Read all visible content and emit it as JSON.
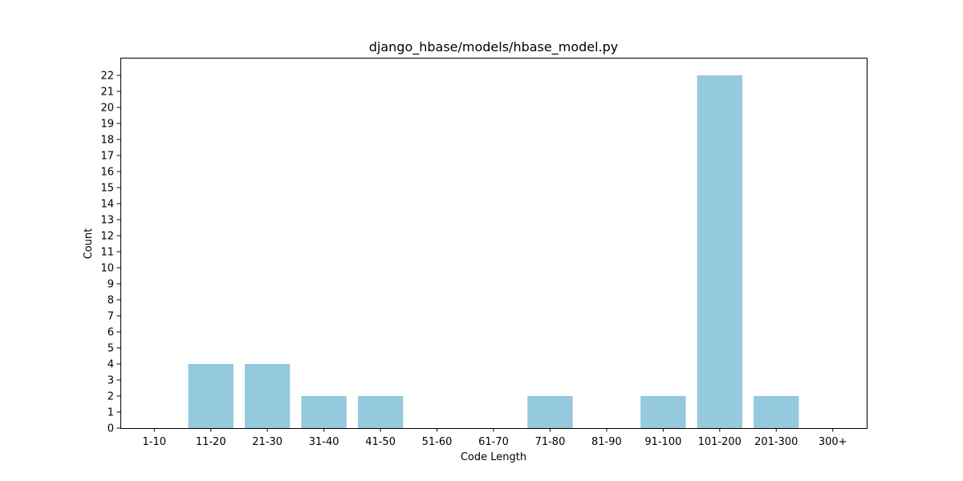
{
  "chart_data": {
    "type": "bar",
    "title": "django_hbase/models/hbase_model.py",
    "xlabel": "Code Length",
    "ylabel": "Count",
    "categories": [
      "1-10",
      "11-20",
      "21-30",
      "31-40",
      "41-50",
      "51-60",
      "61-70",
      "71-80",
      "81-90",
      "91-100",
      "101-200",
      "201-300",
      "300+"
    ],
    "values": [
      0,
      4,
      4,
      2,
      2,
      0,
      0,
      2,
      0,
      2,
      22,
      2,
      0
    ],
    "ylim": [
      0,
      23.1
    ],
    "yticks": [
      0,
      1,
      2,
      3,
      4,
      5,
      6,
      7,
      8,
      9,
      10,
      11,
      12,
      13,
      14,
      15,
      16,
      17,
      18,
      19,
      20,
      21,
      22
    ],
    "grid": false,
    "bar_color": "#95c9dd"
  }
}
